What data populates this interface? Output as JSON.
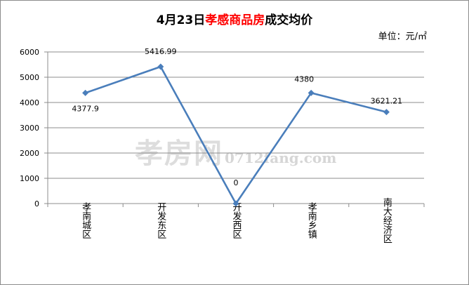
{
  "chart_data": {
    "type": "line",
    "title_prefix": "4月23日",
    "title_highlight": "孝感商品房",
    "title_suffix": "成交均价",
    "unit_label": "单位：元/㎡",
    "categories": [
      "孝南城区",
      "开发东区",
      "开发西区",
      "孝南乡镇",
      "南大经济区"
    ],
    "values": [
      4377.9,
      5416.99,
      0,
      4380,
      3621.21
    ],
    "data_labels": [
      "4377.9",
      "5416.99",
      "0",
      "4380",
      "3621.21"
    ],
    "ylim": [
      0,
      6000
    ],
    "yticks": [
      "0",
      "1000",
      "2000",
      "3000",
      "4000",
      "5000",
      "6000"
    ],
    "grid": true,
    "legend": "none",
    "colors": {
      "line": "#4a7ebb",
      "highlight": "#ff0000",
      "plot_background": "#ffffff",
      "gridline": "#8c8c8c"
    }
  },
  "watermark": {
    "cn": "孝房网",
    "url": "0712fang.com"
  }
}
